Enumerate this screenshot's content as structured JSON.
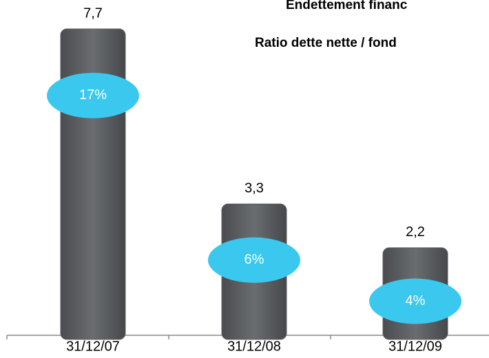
{
  "chart_data": {
    "type": "bar",
    "title": "Endettement financ",
    "subtitle": "Ratio dette nette / fond",
    "categories": [
      "31/12/07",
      "31/12/08",
      "31/12/09"
    ],
    "values": [
      7.7,
      3.3,
      2.2
    ],
    "value_labels": [
      "7,7",
      "3,3",
      "2,2"
    ],
    "color": "#5b5e61",
    "ratios": {
      "values": [
        17,
        6,
        4
      ],
      "value_labels": [
        "17%",
        "6%",
        "4%"
      ],
      "color": "#3ac8ef"
    }
  }
}
